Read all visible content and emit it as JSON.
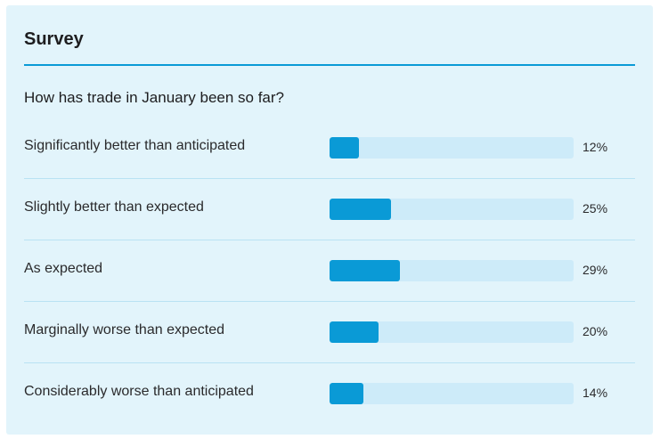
{
  "survey": {
    "title": "Survey",
    "question": "How has trade in January been so far?",
    "accent_color": "#0a9ad6",
    "track_color": "#cdebf9",
    "options": [
      {
        "label": "Significantly better than anticipated",
        "percent": 12,
        "percent_label": "12%"
      },
      {
        "label": "Slightly better than expected",
        "percent": 25,
        "percent_label": "25%"
      },
      {
        "label": "As expected",
        "percent": 29,
        "percent_label": "29%"
      },
      {
        "label": "Marginally worse than expected",
        "percent": 20,
        "percent_label": "20%"
      },
      {
        "label": "Considerably worse than anticipated",
        "percent": 14,
        "percent_label": "14%"
      }
    ]
  }
}
